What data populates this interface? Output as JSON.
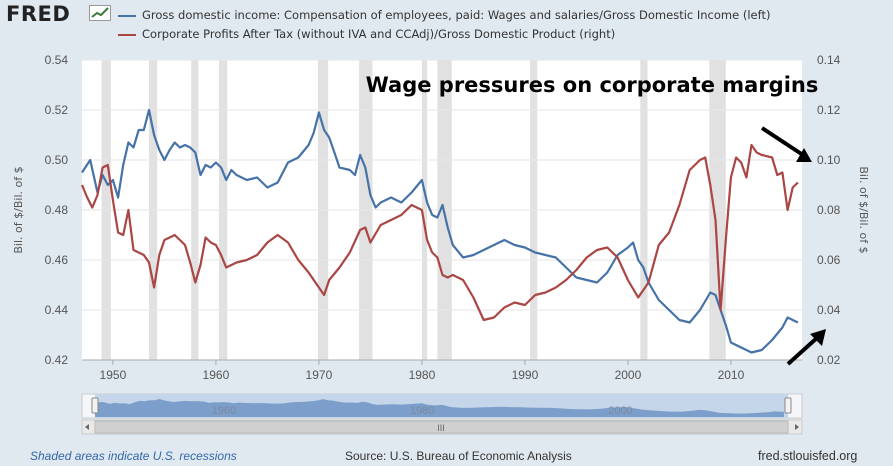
{
  "header": {
    "logo_text": "FRED",
    "legend": [
      {
        "label": "Gross domestic income: Compensation of employees, paid: Wages and salaries/Gross Domestic Income (left)",
        "color": "#4572a7"
      },
      {
        "label": "Corporate Profits After Tax (without IVA and CCAdj)/Gross Domestic Product (right)",
        "color": "#aa4643"
      }
    ]
  },
  "chart_data": {
    "type": "line",
    "title": "Wage pressures on corporate margins",
    "ylabel_left": "Bil. of $/Bil. of $",
    "ylabel_right": "Bil. of $/Bil. of $",
    "xlim": [
      1947,
      2016.9
    ],
    "ylim_left": [
      0.42,
      0.54
    ],
    "ylim_right": [
      0.02,
      0.14
    ],
    "x_ticks": [
      "1950",
      "1960",
      "1970",
      "1980",
      "1990",
      "2000",
      "2010"
    ],
    "y_ticks_left": [
      "0.42",
      "0.44",
      "0.46",
      "0.48",
      "0.50",
      "0.52",
      "0.54"
    ],
    "y_ticks_right": [
      "0.02",
      "0.04",
      "0.06",
      "0.08",
      "0.10",
      "0.12",
      "0.14"
    ],
    "recessions": [
      [
        1948.9,
        1949.8
      ],
      [
        1953.5,
        1954.3
      ],
      [
        1957.6,
        1958.3
      ],
      [
        1960.3,
        1961.1
      ],
      [
        1969.9,
        1970.9
      ],
      [
        1973.9,
        1975.2
      ],
      [
        1980.0,
        1980.5
      ],
      [
        1981.5,
        1982.9
      ],
      [
        1990.5,
        1991.2
      ],
      [
        2001.2,
        2001.9
      ],
      [
        2007.9,
        2009.5
      ]
    ],
    "series": [
      {
        "name": "Gross domestic income: Compensation of employees, paid: Wages and salaries/Gross Domestic Income (left)",
        "axis": "left",
        "color": "#4572a7",
        "x": [
          1947,
          1947.8,
          1948.5,
          1949,
          1949.5,
          1950,
          1950.5,
          1951,
          1951.5,
          1952,
          1952.5,
          1953,
          1953.5,
          1954,
          1954.5,
          1955,
          1955.5,
          1956,
          1956.5,
          1957,
          1957.5,
          1958,
          1958.5,
          1959,
          1959.5,
          1960,
          1960.5,
          1961,
          1961.5,
          1962,
          1963,
          1964,
          1965,
          1966,
          1967,
          1968,
          1969,
          1969.5,
          1970,
          1970.5,
          1971,
          1971.5,
          1972,
          1973,
          1973.5,
          1974,
          1974.5,
          1975,
          1975.5,
          1976,
          1977,
          1978,
          1979,
          1980,
          1980.5,
          1981,
          1981.5,
          1982,
          1982.5,
          1983,
          1984,
          1985,
          1986,
          1987,
          1988,
          1989,
          1990,
          1991,
          1992,
          1993,
          1994,
          1995,
          1996,
          1997,
          1998,
          1999,
          2000,
          2000.5,
          2001,
          2001.5,
          2002,
          2003,
          2004,
          2005,
          2006,
          2007,
          2008,
          2008.5,
          2009,
          2009.5,
          2010,
          2011,
          2012,
          2013,
          2014,
          2015,
          2015.5,
          2016,
          2016.5
        ],
        "values": [
          0.495,
          0.5,
          0.487,
          0.494,
          0.49,
          0.492,
          0.485,
          0.498,
          0.507,
          0.505,
          0.512,
          0.512,
          0.52,
          0.51,
          0.504,
          0.5,
          0.504,
          0.507,
          0.505,
          0.506,
          0.505,
          0.503,
          0.494,
          0.498,
          0.497,
          0.499,
          0.497,
          0.492,
          0.496,
          0.494,
          0.492,
          0.493,
          0.489,
          0.491,
          0.499,
          0.501,
          0.506,
          0.511,
          0.519,
          0.512,
          0.509,
          0.503,
          0.497,
          0.496,
          0.494,
          0.502,
          0.497,
          0.486,
          0.481,
          0.483,
          0.485,
          0.483,
          0.487,
          0.492,
          0.483,
          0.478,
          0.477,
          0.482,
          0.473,
          0.466,
          0.461,
          0.462,
          0.464,
          0.466,
          0.468,
          0.466,
          0.465,
          0.463,
          0.462,
          0.461,
          0.457,
          0.453,
          0.452,
          0.451,
          0.455,
          0.462,
          0.465,
          0.467,
          0.46,
          0.457,
          0.451,
          0.444,
          0.44,
          0.436,
          0.435,
          0.44,
          0.447,
          0.446,
          0.44,
          0.434,
          0.427,
          0.425,
          0.423,
          0.424,
          0.428,
          0.433,
          0.437,
          0.436,
          0.435
        ]
      },
      {
        "name": "Corporate Profits After Tax (without IVA and CCAdj)/Gross Domestic Product (right)",
        "axis": "right",
        "color": "#aa4643",
        "x": [
          1947,
          1947.5,
          1948,
          1948.5,
          1949,
          1949.5,
          1950,
          1950.5,
          1951,
          1951.5,
          1952,
          1953,
          1953.5,
          1954,
          1954.5,
          1955,
          1955.5,
          1956,
          1956.5,
          1957,
          1957.5,
          1958,
          1958.5,
          1959,
          1959.5,
          1960,
          1960.5,
          1961,
          1961.5,
          1962,
          1963,
          1964,
          1965,
          1966,
          1967,
          1968,
          1969,
          1970,
          1970.5,
          1971,
          1972,
          1973,
          1974,
          1974.5,
          1975,
          1976,
          1977,
          1978,
          1979,
          1980,
          1980.5,
          1981,
          1981.5,
          1982,
          1982.5,
          1983,
          1984,
          1985,
          1986,
          1987,
          1988,
          1989,
          1990,
          1991,
          1992,
          1993,
          1994,
          1995,
          1996,
          1997,
          1998,
          1999,
          2000,
          2001,
          2001.5,
          2002,
          2003,
          2004,
          2005,
          2006,
          2007,
          2007.5,
          2008,
          2008.5,
          2009,
          2009.5,
          2010,
          2010.5,
          2011,
          2011.5,
          2012,
          2012.5,
          2013,
          2014,
          2014.5,
          2015,
          2015.5,
          2016,
          2016.5
        ],
        "values": [
          0.09,
          0.085,
          0.081,
          0.086,
          0.097,
          0.098,
          0.084,
          0.071,
          0.07,
          0.08,
          0.064,
          0.062,
          0.059,
          0.049,
          0.062,
          0.068,
          0.069,
          0.07,
          0.068,
          0.066,
          0.059,
          0.051,
          0.058,
          0.069,
          0.067,
          0.066,
          0.062,
          0.057,
          0.058,
          0.059,
          0.06,
          0.062,
          0.067,
          0.07,
          0.067,
          0.06,
          0.055,
          0.049,
          0.046,
          0.052,
          0.057,
          0.063,
          0.072,
          0.073,
          0.067,
          0.074,
          0.076,
          0.078,
          0.082,
          0.08,
          0.068,
          0.063,
          0.061,
          0.054,
          0.053,
          0.054,
          0.052,
          0.045,
          0.036,
          0.037,
          0.041,
          0.043,
          0.042,
          0.046,
          0.047,
          0.049,
          0.052,
          0.056,
          0.061,
          0.064,
          0.065,
          0.061,
          0.052,
          0.045,
          0.048,
          0.051,
          0.066,
          0.071,
          0.082,
          0.096,
          0.1,
          0.101,
          0.09,
          0.076,
          0.04,
          0.068,
          0.093,
          0.101,
          0.099,
          0.093,
          0.106,
          0.103,
          0.102,
          0.101,
          0.094,
          0.095,
          0.08,
          0.089,
          0.091
        ]
      }
    ]
  },
  "navigator": {
    "tick_labels": [
      "1960",
      "1980",
      "2000"
    ]
  },
  "footer": {
    "recession_note": "Shaded areas indicate U.S. recessions",
    "source": "Source: U.S. Bureau of Economic Analysis",
    "site": "fred.stlouisfed.org"
  }
}
